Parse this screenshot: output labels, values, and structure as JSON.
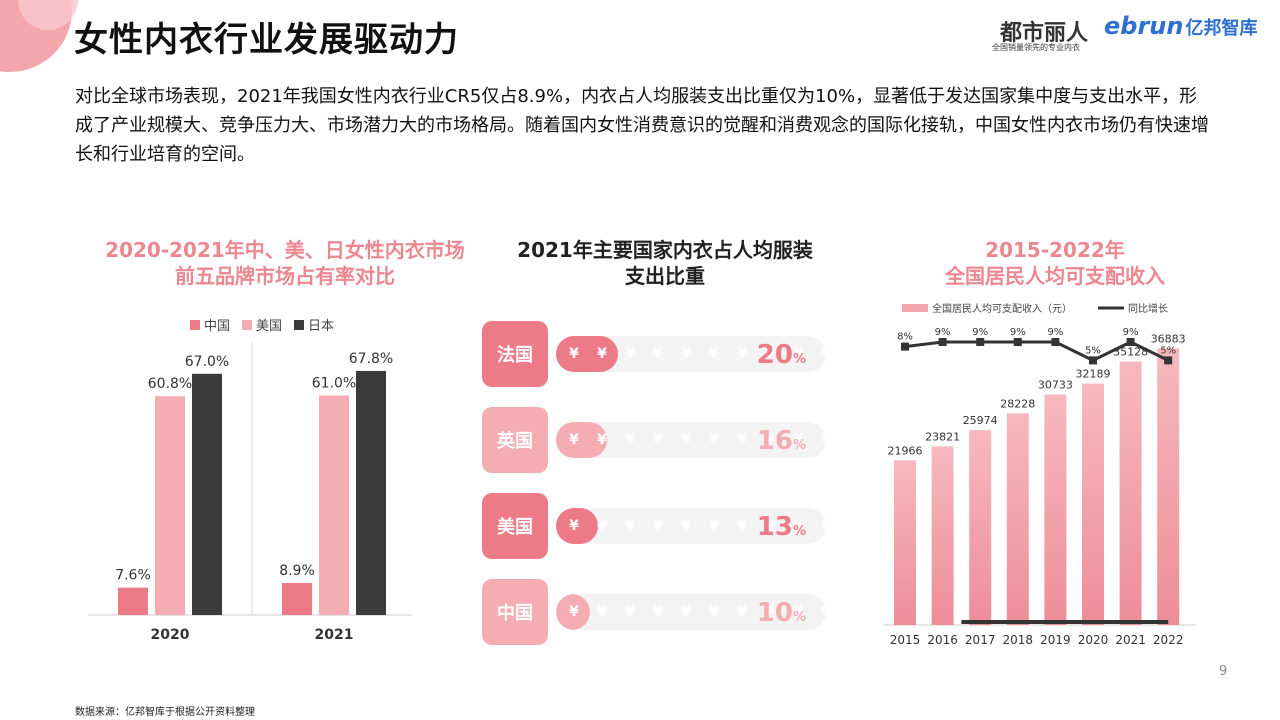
{
  "header": {
    "title": "女性内衣行业发展驱动力",
    "logo1": "都市丽人",
    "logo1_sub": "全国销量领先的专业内衣",
    "logo2_brand": "ebrun",
    "logo2_text": "亿邦智库"
  },
  "intro": "对比全球市场表现，2021年我国女性内衣行业CR5仅占8.9%，内衣占人均服装支出比重仅为10%，显著低于发达国家集中度与支出水平，形成了产业规模大、竞争压力大、市场潜力大的市场格局。随着国内女性消费意识的觉醒和消费观念的国际化接轨，中国女性内衣市场仍有快速增长和行业培育的空间。",
  "chart_data": [
    {
      "type": "bar",
      "title": "2020-2021年中、美、日女性内衣市场前五品牌市场占有率对比",
      "title_lines": [
        "2020-2021年中、美、日女性内衣市场",
        "前五品牌市场占有率对比"
      ],
      "categories": [
        "2020",
        "2021"
      ],
      "series": [
        {
          "name": "中国",
          "values": [
            7.6,
            8.9
          ],
          "labels": [
            "7.6%",
            "8.9%"
          ],
          "color": "#ec7a87"
        },
        {
          "name": "美国",
          "values": [
            60.8,
            61.0
          ],
          "labels": [
            "60.8%",
            "61.0%"
          ],
          "color": "#f3adb3"
        },
        {
          "name": "日本",
          "values": [
            67.0,
            67.8
          ],
          "labels": [
            "67.0%",
            "67.8%"
          ],
          "color": "#3b3b3b"
        }
      ],
      "legend": "top",
      "ylim": [
        0,
        80
      ]
    },
    {
      "type": "bar",
      "title": "2021年主要国家内衣占人均服装支出比重",
      "title_lines": [
        "2021年主要国家内衣占人均服装",
        "支出比重"
      ],
      "categories": [
        "法国",
        "英国",
        "美国",
        "中国"
      ],
      "values": [
        20,
        16,
        13,
        10
      ],
      "value_numbers": [
        "20",
        "16",
        "13",
        "10"
      ],
      "unit": "%",
      "icon_glyph": "¥",
      "colors": [
        "#ec7a87",
        "#f3adb3",
        "#ec7a87",
        "#f3adb3"
      ]
    },
    {
      "type": "bar",
      "title": "2015-2022年全国居民人均可支配收入",
      "title_lines": [
        "2015-2022年",
        "全国居民人均可支配收入"
      ],
      "categories": [
        "2015",
        "2016",
        "2017",
        "2018",
        "2019",
        "2020",
        "2021",
        "2022"
      ],
      "series": [
        {
          "name": "全国居民人均可支配收入（元）",
          "type": "bar",
          "values": [
            21966,
            23821,
            25974,
            28228,
            30733,
            32189,
            35128,
            36883
          ],
          "color": "#f3a7ad"
        },
        {
          "name": "同比增长",
          "type": "line",
          "values": [
            8,
            9,
            9,
            9,
            9,
            5,
            9,
            5
          ],
          "labels": [
            "8%",
            "9%",
            "9%",
            "9%",
            "9%",
            "5%",
            "9%",
            "5%"
          ],
          "color": "#333333"
        }
      ],
      "legend": "top",
      "ylim": [
        0,
        40000
      ]
    }
  ],
  "footer": {
    "page_number": "9",
    "source": "数据来源：亿邦智库于根据公开资料整理"
  }
}
